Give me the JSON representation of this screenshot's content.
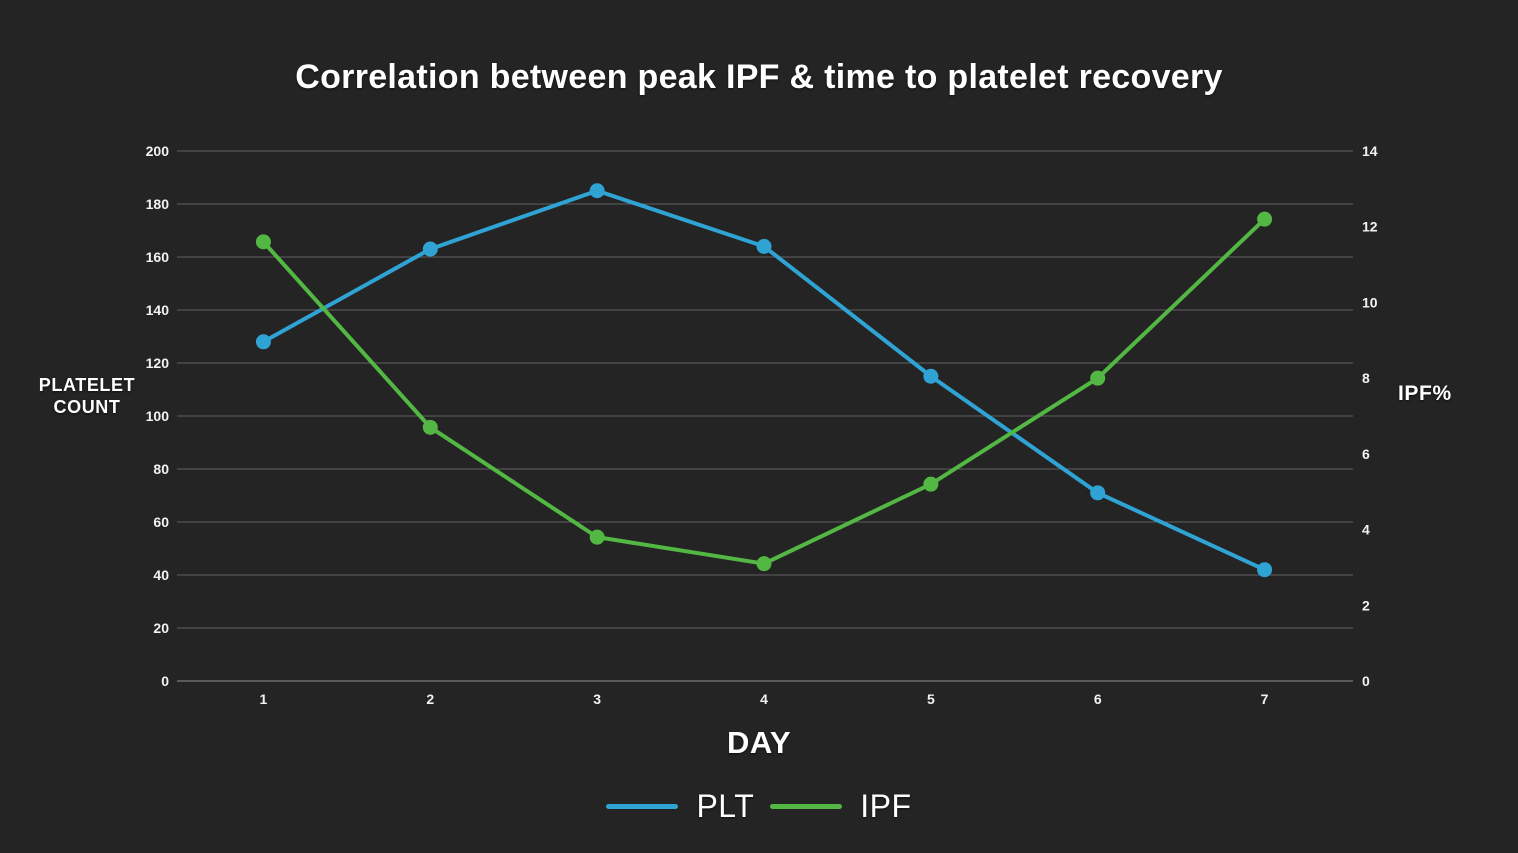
{
  "page": {
    "background": "#242424"
  },
  "chart_data": {
    "type": "line",
    "title": "Correlation between peak IPF & time to platelet recovery",
    "categories": [
      "1",
      "2",
      "3",
      "4",
      "5",
      "6",
      "7"
    ],
    "xlabel": "DAY",
    "axes": {
      "left": {
        "label": "PLATELET COUNT",
        "min": 0,
        "max": 200,
        "step": 20
      },
      "right": {
        "label": "IPF%",
        "min": 0,
        "max": 14,
        "step": 2
      }
    },
    "grid": true,
    "legend_position": "bottom",
    "series": [
      {
        "name": "PLT",
        "axis": "left",
        "color": "#2FA4D4",
        "values": [
          128,
          163,
          185,
          164,
          115,
          71,
          42
        ]
      },
      {
        "name": "IPF",
        "axis": "right",
        "color": "#53B843",
        "values": [
          11.6,
          6.7,
          3.8,
          3.1,
          5.2,
          8.0,
          12.2
        ]
      }
    ],
    "colors": {
      "background": "#242424",
      "gridline": "#5f5f5f",
      "axis_line": "#8f8f8f",
      "text": "#ffffff"
    }
  }
}
